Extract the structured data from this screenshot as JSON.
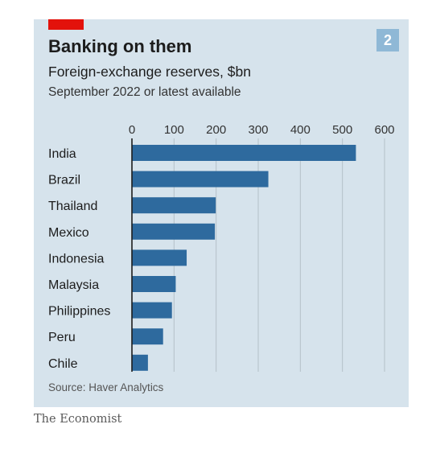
{
  "badge": "2",
  "source": "Source: Haver Analytics",
  "brand": "The Economist",
  "colors": {
    "bar": "#2e6a9e",
    "panel": "#d6e3ec",
    "accent": "#e3120b",
    "grid": "#b4c0c8"
  },
  "chart_data": {
    "type": "bar",
    "orientation": "horizontal",
    "title": "Banking on them",
    "subtitle": "Foreign-exchange reserves, $bn",
    "note": "September 2022 or latest available",
    "categories": [
      "India",
      "Brazil",
      "Thailand",
      "Mexico",
      "Indonesia",
      "Malaysia",
      "Philippines",
      "Peru",
      "Chile"
    ],
    "values": [
      532,
      324,
      199,
      197,
      130,
      104,
      95,
      74,
      38
    ],
    "xticks": [
      0,
      100,
      200,
      300,
      400,
      500,
      600
    ],
    "xlim": [
      0,
      600
    ],
    "grid": true,
    "axis_position": "top"
  }
}
